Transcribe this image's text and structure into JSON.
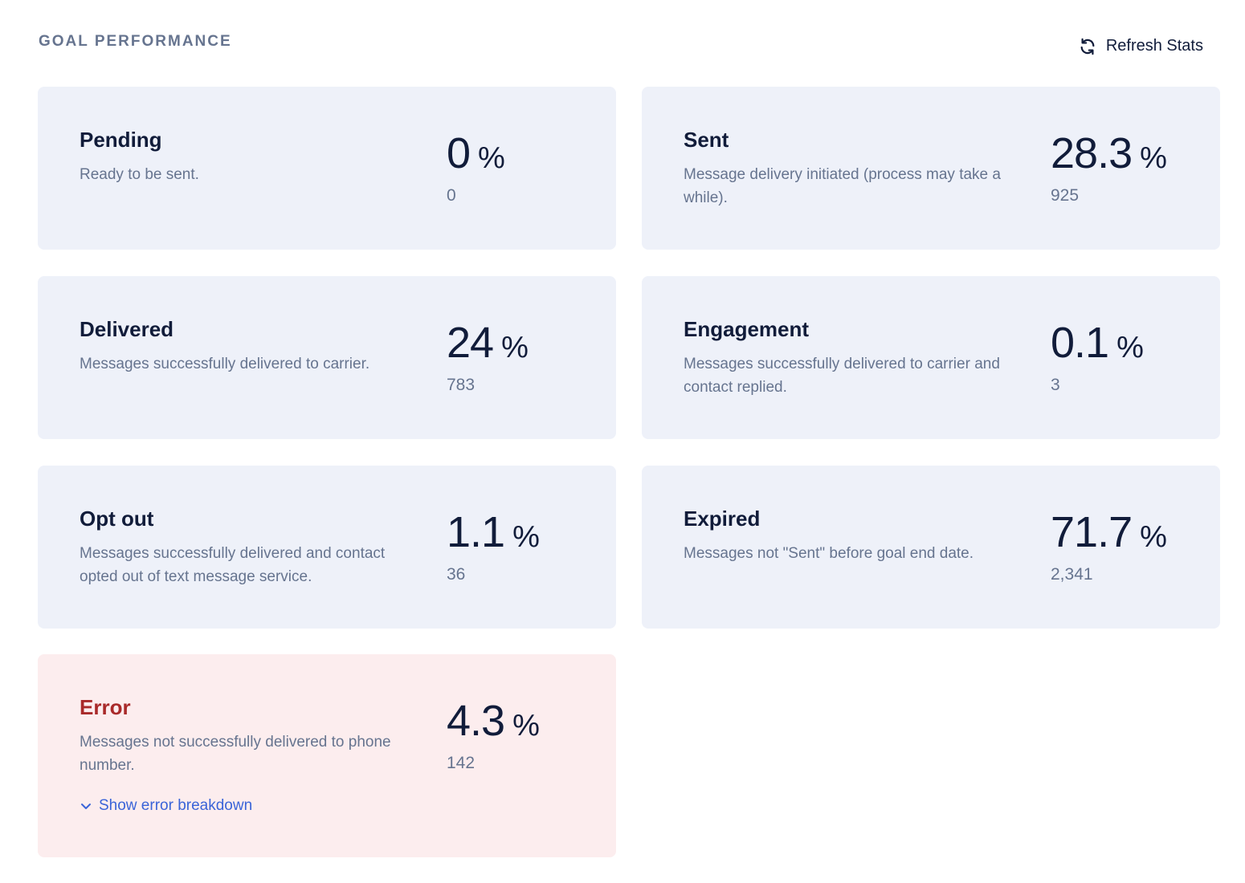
{
  "header": {
    "title": "GOAL PERFORMANCE",
    "refresh_label": "Refresh Stats"
  },
  "cards": [
    {
      "title": "Pending",
      "description": "Ready to be sent.",
      "percent": "0",
      "count": "0"
    },
    {
      "title": "Sent",
      "description": "Message delivery initiated (process may take a while).",
      "percent": "28.3",
      "count": "925"
    },
    {
      "title": "Delivered",
      "description": "Messages successfully delivered to carrier.",
      "percent": "24",
      "count": "783"
    },
    {
      "title": "Engagement",
      "description": "Messages successfully delivered to carrier and contact replied.",
      "percent": "0.1",
      "count": "3"
    },
    {
      "title": "Opt out",
      "description": "Messages successfully delivered and contact opted out of text message service.",
      "percent": "1.1",
      "count": "36"
    },
    {
      "title": "Expired",
      "description": "Messages not \"Sent\" before goal end date.",
      "percent": "71.7",
      "count": "2,341"
    },
    {
      "title": "Error",
      "description": "Messages not successfully delivered to phone number.",
      "percent": "4.3",
      "count": "142",
      "breakdown_label": "Show error breakdown"
    }
  ],
  "percent_sign": "%",
  "colors": {
    "card_bg": "#eef1f9",
    "error_bg": "#fcedee",
    "error_title": "#a92a2a",
    "link": "#3a64d8",
    "muted_text": "#66748f",
    "primary_text": "#111c3a"
  },
  "icons": {
    "refresh": "refresh-icon",
    "breakdown": "chevron-down-icon"
  }
}
